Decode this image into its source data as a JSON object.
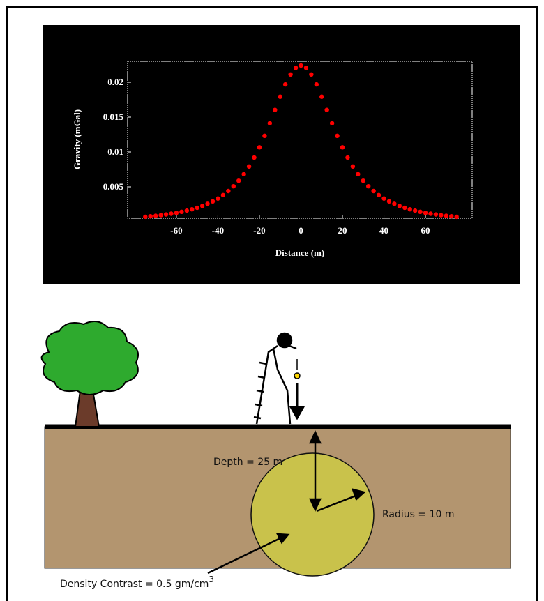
{
  "chart_data": {
    "type": "scatter",
    "xlabel": "Distance (m)",
    "ylabel": "Gravity (mGal)",
    "x": [
      -75,
      -72.5,
      -70,
      -67.5,
      -65,
      -62.5,
      -60,
      -57.5,
      -55,
      -52.5,
      -50,
      -47.5,
      -45,
      -42.5,
      -40,
      -37.5,
      -35,
      -32.5,
      -30,
      -27.5,
      -25,
      -22.5,
      -20,
      -17.5,
      -15,
      -12.5,
      -10,
      -7.5,
      -5,
      -2.5,
      0,
      2.5,
      5,
      7.5,
      10,
      12.5,
      15,
      17.5,
      20,
      22.5,
      25,
      27.5,
      30,
      32.5,
      35,
      37.5,
      40,
      42.5,
      45,
      47.5,
      50,
      52.5,
      55,
      57.5,
      60,
      62.5,
      65,
      67.5,
      70,
      72.5,
      75
    ],
    "series": [
      {
        "color": "#ff0000",
        "values": [
          0.00071,
          0.00078,
          0.00085,
          0.00094,
          0.00104,
          0.00115,
          0.00127,
          0.00142,
          0.00159,
          0.00178,
          0.002,
          0.00226,
          0.00257,
          0.00292,
          0.00333,
          0.00382,
          0.0044,
          0.00508,
          0.00588,
          0.00682,
          0.00792,
          0.0092,
          0.01067,
          0.01232,
          0.01412,
          0.01603,
          0.01793,
          0.01969,
          0.02112,
          0.02207,
          0.0224,
          0.02207,
          0.02112,
          0.01969,
          0.01793,
          0.01603,
          0.01412,
          0.01232,
          0.01067,
          0.0092,
          0.00792,
          0.00682,
          0.00588,
          0.00508,
          0.0044,
          0.00382,
          0.00333,
          0.00292,
          0.00257,
          0.00226,
          0.002,
          0.00178,
          0.00159,
          0.00142,
          0.00127,
          0.00115,
          0.00104,
          0.00094,
          0.00085,
          0.00078,
          0.00071
        ]
      }
    ],
    "xlim": [
      -83.5,
      82.5
    ],
    "ylim": [
      0.0005,
      0.023
    ],
    "xticks": [
      -60,
      -40,
      -20,
      0,
      20,
      40,
      60
    ],
    "yticks": [
      0.005,
      0.01,
      0.015,
      0.02
    ]
  },
  "diagram": {
    "depth_label": "Depth = 25 m",
    "radius_label": "Radius = 10 m",
    "density_label": "Density Contrast = 0.5 gm/cm",
    "density_exponent": "3"
  }
}
